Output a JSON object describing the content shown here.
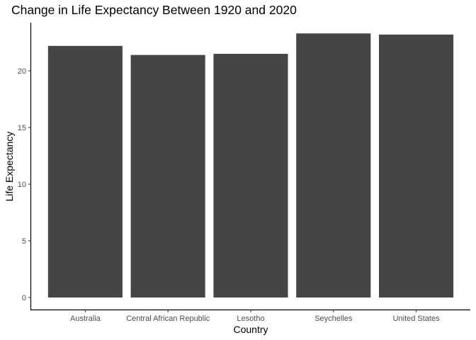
{
  "chart_data": {
    "type": "bar",
    "title": "Change in Life Expectancy Between 1920 and 2020",
    "xlabel": "Country",
    "ylabel": "Life Expectancy",
    "categories": [
      "Australia",
      "Central African Republic",
      "Lesotho",
      "Seychelles",
      "United States"
    ],
    "values": [
      22.2,
      21.4,
      21.5,
      23.3,
      23.2
    ],
    "ylim": [
      0,
      24
    ],
    "yticks": [
      0,
      5,
      10,
      15,
      20
    ],
    "grid": false,
    "bar_color": "#454545",
    "axis_color": "#000000"
  }
}
